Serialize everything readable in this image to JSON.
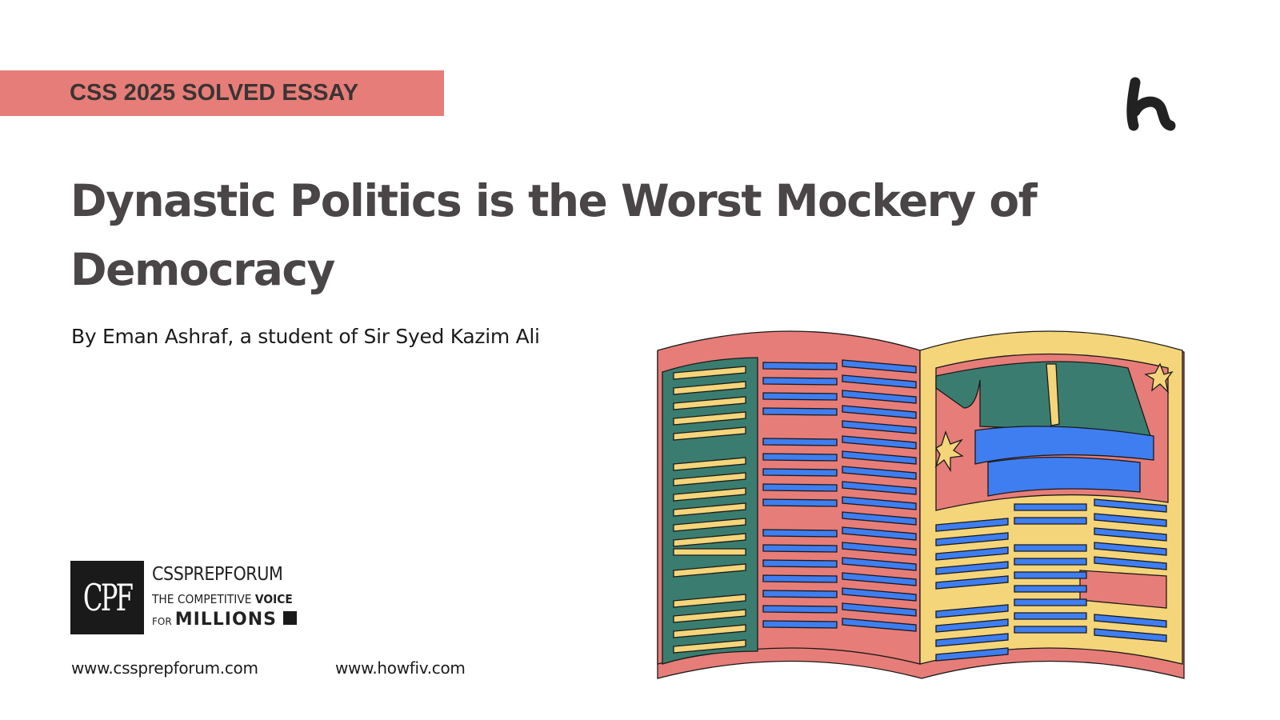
{
  "tag": {
    "label": "CSS 2025 SOLVED ESSAY",
    "color": "#e77d78"
  },
  "brand_logo": {
    "icon": "howfiv-h-logo"
  },
  "title": "Dynastic Politics is the Worst Mockery of Democracy",
  "byline": "By Eman Ashraf, a student of Sir Syed Kazim Ali",
  "cpf": {
    "logo_text": "CPF",
    "name": "CSSPREPFORUM",
    "tagline_prefix": "THE COMPETITIVE",
    "tagline_bold": "VOICE",
    "for": "FOR",
    "millions": "MILLIONS"
  },
  "links": {
    "site1": "www.cssprepforum.com",
    "site2": "www.howfiv.com"
  },
  "illustration": {
    "icon": "open-magazine-with-politician-at-podium",
    "colors": {
      "red": "#e77d78",
      "yellow": "#f5d57a",
      "green": "#3a7d70",
      "blue": "#3f7ef0"
    }
  }
}
